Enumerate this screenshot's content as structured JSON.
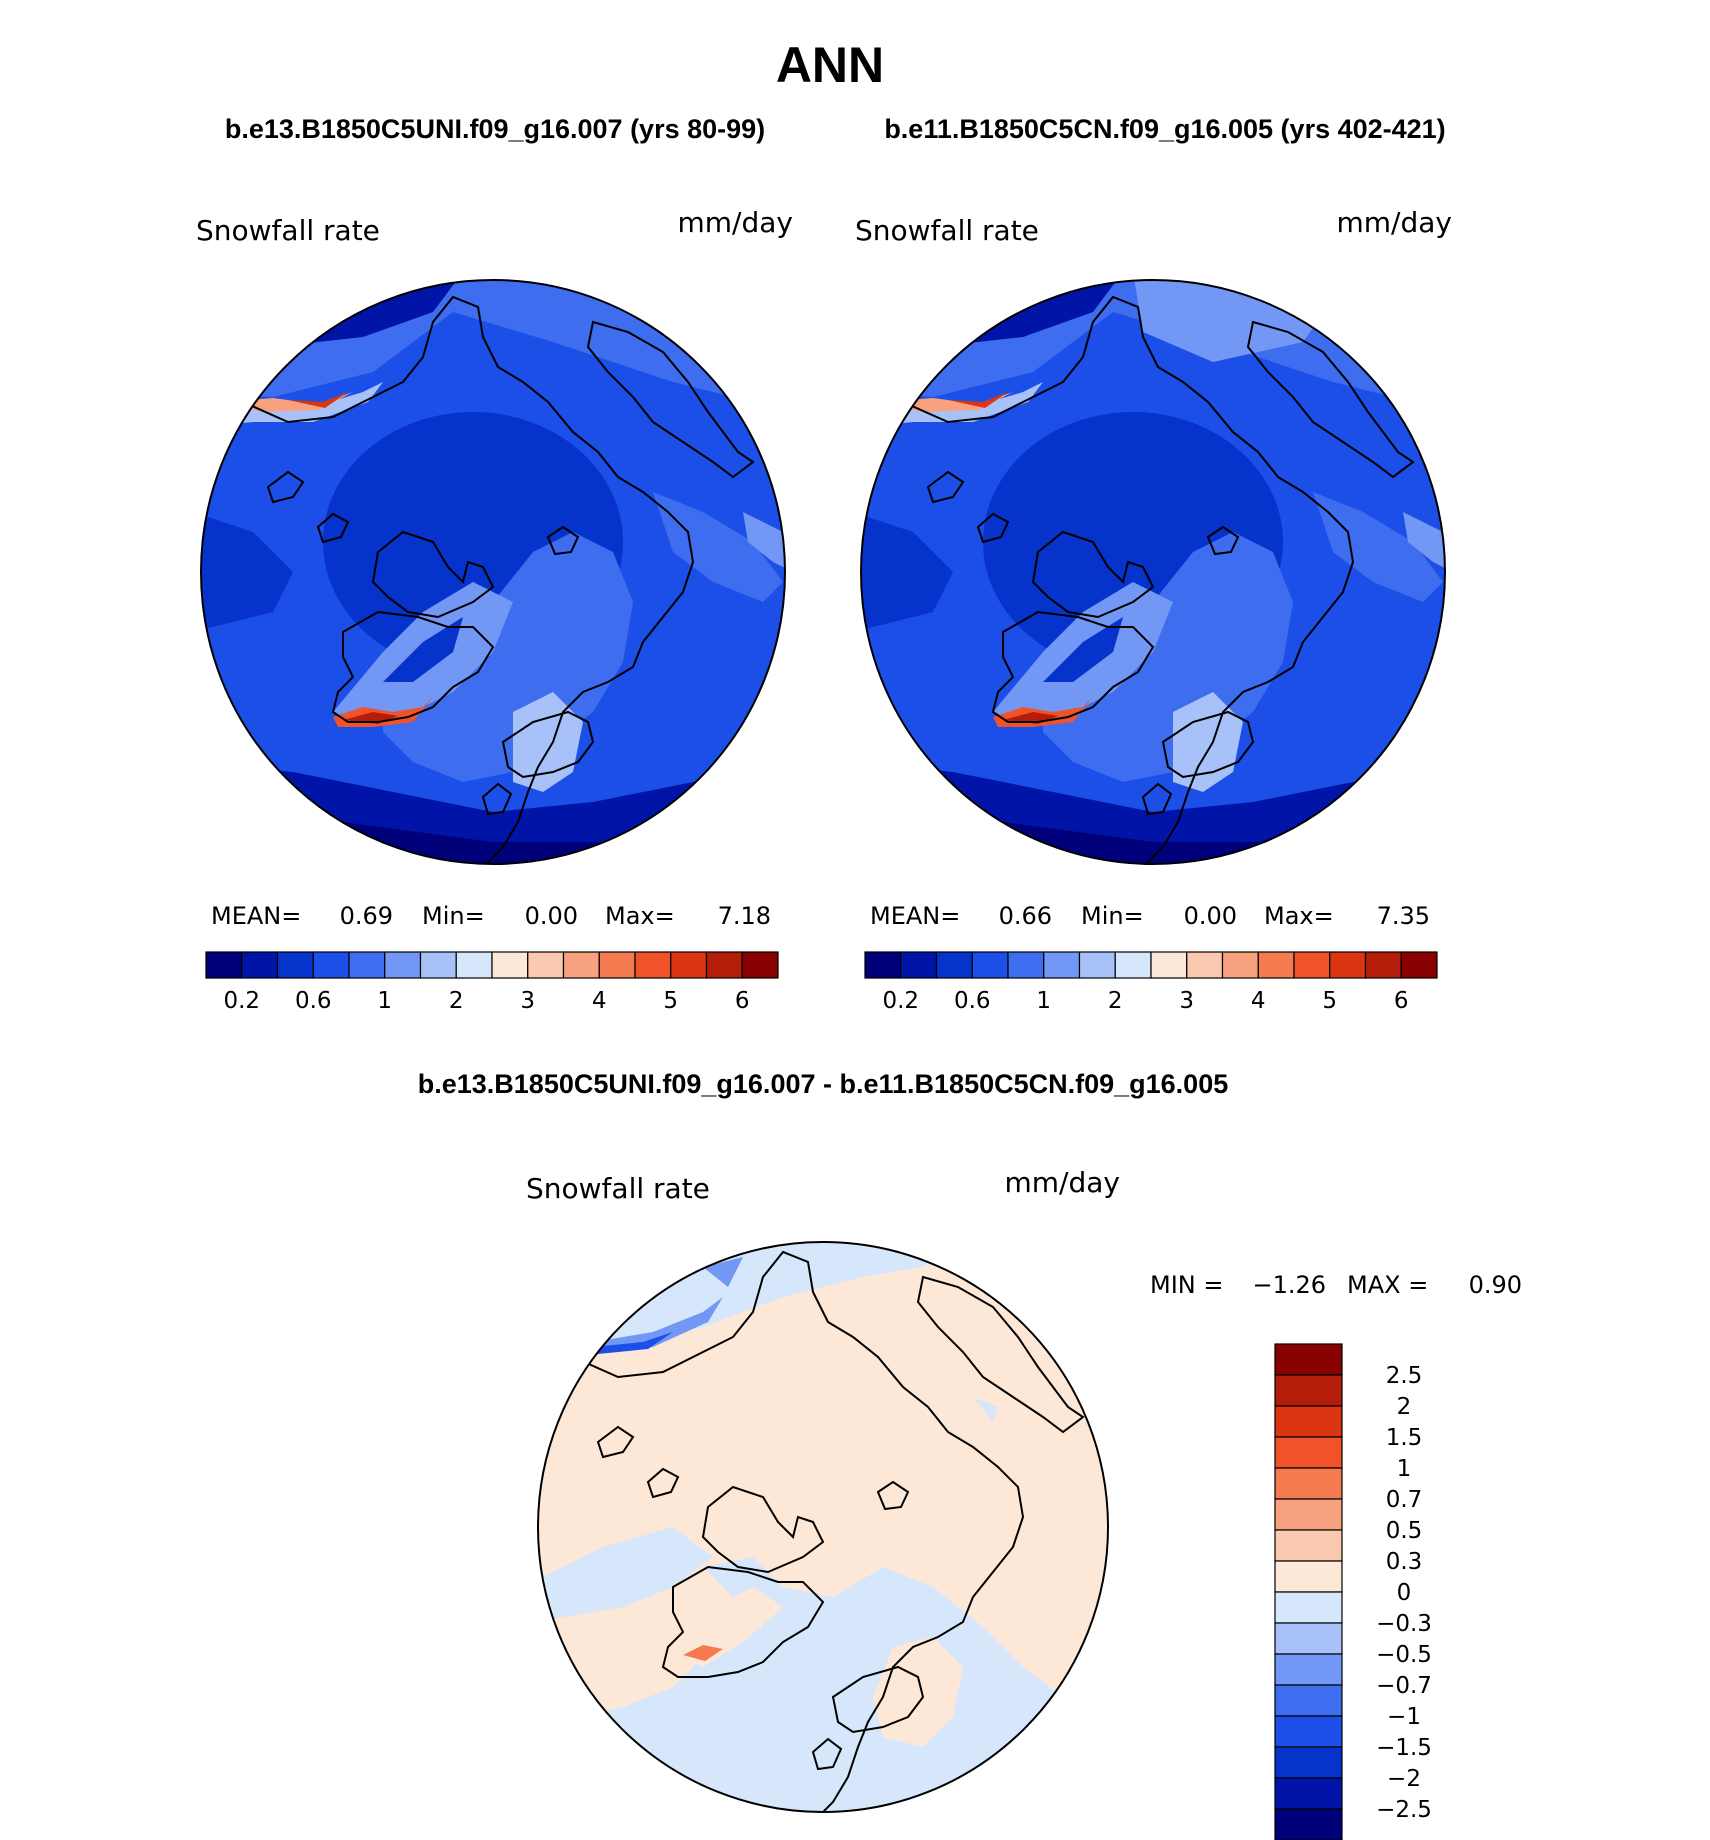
{
  "page": {
    "title": "ANN",
    "case_left": "b.e13.B1850C5UNI.f09_g16.007 (yrs 80-99)",
    "case_right": "b.e11.B1850C5CN.f09_g16.005 (yrs 402-421)",
    "diff_title": "b.e13.B1850C5UNI.f09_g16.007 - b.e11.B1850C5CN.f09_g16.005"
  },
  "chart_data": [
    {
      "type": "heatmap",
      "projection": "north polar stereographic",
      "variable": "Snowfall rate",
      "units": "mm/day",
      "stats": {
        "mean_label": "MEAN=",
        "mean": "0.69",
        "min_label": "Min=",
        "min": "0.00",
        "max_label": "Max=",
        "max": "7.18"
      },
      "colorbar": {
        "orientation": "horizontal",
        "levels": [
          0.1,
          0.2,
          0.4,
          0.6,
          0.8,
          1,
          1.5,
          2,
          2.5,
          3,
          3.5,
          4,
          4.5,
          5,
          5.5,
          6,
          6.5
        ],
        "tick_labels": [
          "0.2",
          "0.6",
          "1",
          "2",
          "3",
          "4",
          "5",
          "6"
        ],
        "colors": [
          "#00007a",
          "#0015a8",
          "#0533cc",
          "#1c4fe8",
          "#3f6df0",
          "#7297f5",
          "#a8c1f8",
          "#d6e6fb",
          "#fde8d8",
          "#fbc8b0",
          "#f7a17e",
          "#f47a50",
          "#f0522a",
          "#dc3512",
          "#b41d0a",
          "#880000"
        ]
      }
    },
    {
      "type": "heatmap",
      "projection": "north polar stereographic",
      "variable": "Snowfall rate",
      "units": "mm/day",
      "stats": {
        "mean_label": "MEAN=",
        "mean": "0.66",
        "min_label": "Min=",
        "min": "0.00",
        "max_label": "Max=",
        "max": "7.35"
      },
      "colorbar": {
        "orientation": "horizontal",
        "levels": [
          0.1,
          0.2,
          0.4,
          0.6,
          0.8,
          1,
          1.5,
          2,
          2.5,
          3,
          3.5,
          4,
          4.5,
          5,
          5.5,
          6,
          6.5
        ],
        "tick_labels": [
          "0.2",
          "0.6",
          "1",
          "2",
          "3",
          "4",
          "5",
          "6"
        ],
        "colors": [
          "#00007a",
          "#0015a8",
          "#0533cc",
          "#1c4fe8",
          "#3f6df0",
          "#7297f5",
          "#a8c1f8",
          "#d6e6fb",
          "#fde8d8",
          "#fbc8b0",
          "#f7a17e",
          "#f47a50",
          "#f0522a",
          "#dc3512",
          "#b41d0a",
          "#880000"
        ]
      }
    },
    {
      "type": "heatmap",
      "projection": "north polar stereographic",
      "variable": "Snowfall rate",
      "units": "mm/day",
      "stats": {
        "min_label": "MIN =",
        "min": "−1.26",
        "max_label": "MAX =",
        "max": "0.90"
      },
      "colorbar": {
        "orientation": "vertical",
        "tick_labels": [
          "2.5",
          "2",
          "1.5",
          "1",
          "0.7",
          "0.5",
          "0.3",
          "0",
          "−0.3",
          "−0.5",
          "−0.7",
          "−1",
          "−1.5",
          "−2",
          "−2.5"
        ],
        "colors_top_to_bottom": [
          "#880000",
          "#b41d0a",
          "#dc3512",
          "#f0522a",
          "#f47a50",
          "#f7a17e",
          "#fbc8b0",
          "#fde8d8",
          "#d6e6fb",
          "#a8c1f8",
          "#7297f5",
          "#3f6df0",
          "#1c4fe8",
          "#0533cc",
          "#0015a8",
          "#00007a"
        ]
      }
    }
  ]
}
